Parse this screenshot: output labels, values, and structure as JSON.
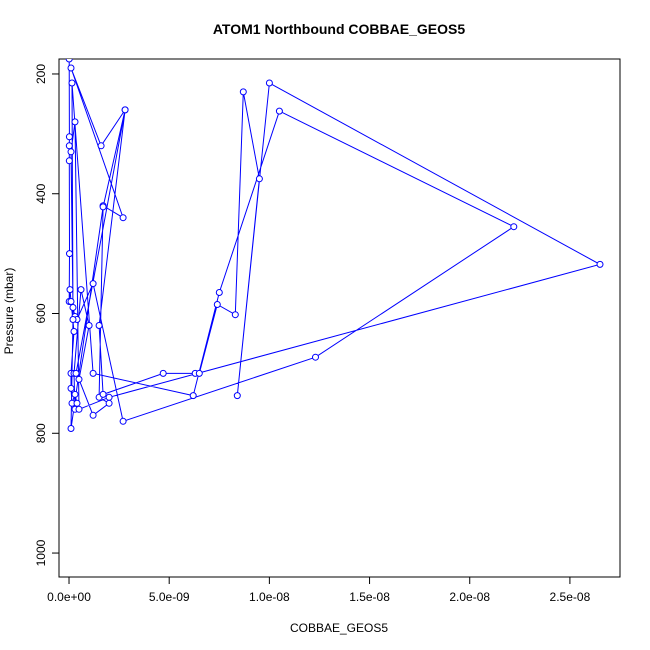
{
  "chart_data": {
    "type": "line",
    "title": "ATOM1 Northbound COBBAE_GEOS5",
    "xlabel": "COBBAE_GEOS5",
    "ylabel": "Pressure (mbar)",
    "xlim": [
      -5e-10,
      2.75e-08
    ],
    "ylim": [
      1040,
      175
    ],
    "y_reversed": true,
    "x_ticks": [
      0,
      5e-09,
      1e-08,
      1.5e-08,
      2e-08,
      2.5e-08
    ],
    "x_tick_labels": [
      "0.0e+00",
      "5.0e-09",
      "1.0e-08",
      "1.5e-08",
      "2.0e-08",
      "2.5e-08"
    ],
    "y_ticks": [
      200,
      400,
      600,
      800,
      1000
    ],
    "y_tick_labels": [
      "200",
      "400",
      "600",
      "800",
      "1000"
    ],
    "grid": false,
    "color": "#0000ff",
    "series": [
      {
        "x": [
          1e-11,
          2e-11,
          1.5e-11,
          1.2e-11,
          2.5e-11,
          1e-11,
          5e-11,
          1e-10,
          2.5e-10,
          1e-10,
          1e-10,
          1.5e-10,
          3e-10,
          4e-10,
          3e-10,
          2.5e-10,
          6e-10,
          1e-09,
          5e-10,
          1.2e-09,
          2e-09,
          1.5e-09,
          1.7e-09,
          2.7e-09,
          1e-10,
          1.6e-09,
          2.8e-09,
          1.5e-09,
          1.7e-09,
          4.7e-09,
          6.3e-09,
          6.5e-09,
          7.4e-09,
          8.3e-09,
          8.7e-09,
          9.5e-09,
          8.4e-09,
          1e-08,
          2.65e-08,
          2e-09,
          5e-10,
          3e-10,
          1e-10,
          2e-10,
          3e-10,
          4e-10,
          1.2e-09,
          2.7e-09,
          1.23e-08,
          2.22e-08,
          1.05e-08,
          7.5e-09,
          6.2e-09,
          1.2e-09,
          1.5e-10,
          2e-10,
          1e-10,
          1.7e-09,
          2.8e-09,
          3.5e-10
        ],
        "y": [
          175,
          305,
          320,
          345,
          500,
          580,
          560,
          580,
          630,
          700,
          725,
          750,
          735,
          750,
          760,
          700,
          560,
          620,
          710,
          770,
          750,
          740,
          420,
          440,
          190,
          320,
          260,
          620,
          735,
          700,
          700,
          700,
          585,
          602,
          230,
          375,
          737,
          215,
          518,
          740,
          760,
          280,
          330,
          590,
          605,
          610,
          550,
          780,
          673,
          455,
          262,
          565,
          737,
          700,
          215,
          610,
          792,
          422,
          260,
          700
        ]
      }
    ]
  }
}
